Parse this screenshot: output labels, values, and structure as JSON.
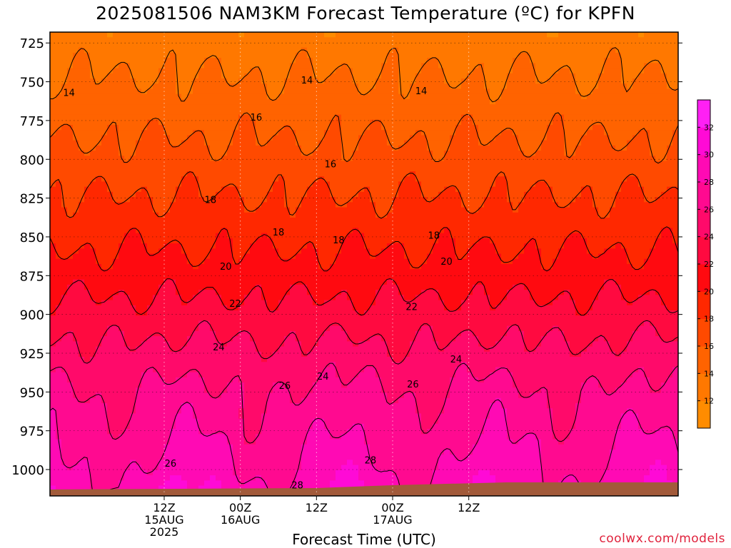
{
  "title": "2025081506 NAM3KM Forecast Temperature (ºC) for KPFN",
  "xlabel": "Forecast Time (UTC)",
  "credit": "coolwx.com/models",
  "chart_data": {
    "type": "heatmap",
    "y_axis": {
      "label": "",
      "ticks": [
        725,
        750,
        775,
        800,
        825,
        850,
        875,
        900,
        925,
        950,
        975,
        1000
      ],
      "range_top": 718,
      "range_bottom": 1017,
      "inverted": true
    },
    "x_axis": {
      "label": "Forecast Time (UTC)",
      "range_hours": [
        -12,
        87
      ],
      "ticks": [
        {
          "hour": 6,
          "lines": [
            "12Z",
            "15AUG",
            "2025"
          ]
        },
        {
          "hour": 18,
          "lines": [
            "00Z",
            "16AUG"
          ]
        },
        {
          "hour": 30,
          "lines": [
            "12Z"
          ]
        },
        {
          "hour": 42,
          "lines": [
            "00Z",
            "17AUG"
          ]
        },
        {
          "hour": 54,
          "lines": [
            "12Z"
          ]
        }
      ]
    },
    "grid": "dotted",
    "colorbar": {
      "labels": [
        12,
        14,
        16,
        18,
        20,
        22,
        24,
        26,
        28,
        30,
        32
      ],
      "levels": [
        10,
        12,
        14,
        16,
        18,
        20,
        22,
        24,
        26,
        28,
        30,
        32,
        34
      ],
      "colors": [
        "#ff8c00",
        "#ff7800",
        "#ff6300",
        "#ff4a00",
        "#ff2800",
        "#ff0a10",
        "#ff0a40",
        "#ff0a6a",
        "#ff0a90",
        "#ff0ab4",
        "#ff0ad6",
        "#ff20f4"
      ]
    },
    "temperature_profile": {
      "pressure": [
        718,
        725,
        750,
        775,
        800,
        825,
        850,
        875,
        900,
        925,
        950,
        975,
        1000,
        1017
      ],
      "temp_c": [
        12.6,
        13.0,
        14.2,
        15.4,
        16.7,
        18.1,
        19.5,
        21.0,
        22.8,
        24.6,
        26.2,
        27.2,
        28.4,
        29.5
      ]
    },
    "contour_labels": [
      {
        "text": "14",
        "hour": -9,
        "p": 757
      },
      {
        "text": "14",
        "hour": 28.5,
        "p": 749
      },
      {
        "text": "14",
        "hour": 46.5,
        "p": 756
      },
      {
        "text": "16",
        "hour": 20.5,
        "p": 773
      },
      {
        "text": "16",
        "hour": 32.2,
        "p": 803
      },
      {
        "text": "18",
        "hour": 13.3,
        "p": 826
      },
      {
        "text": "18",
        "hour": 24.0,
        "p": 847
      },
      {
        "text": "18",
        "hour": 33.5,
        "p": 852
      },
      {
        "text": "18",
        "hour": 48.5,
        "p": 849
      },
      {
        "text": "20",
        "hour": 15.7,
        "p": 869
      },
      {
        "text": "20",
        "hour": 50.5,
        "p": 866
      },
      {
        "text": "22",
        "hour": 17.2,
        "p": 893
      },
      {
        "text": "22",
        "hour": 45.0,
        "p": 895
      },
      {
        "text": "24",
        "hour": 14.6,
        "p": 921
      },
      {
        "text": "24",
        "hour": 31.0,
        "p": 940
      },
      {
        "text": "24",
        "hour": 52.0,
        "p": 929
      },
      {
        "text": "26",
        "hour": 25.0,
        "p": 946
      },
      {
        "text": "26",
        "hour": 45.2,
        "p": 945
      },
      {
        "text": "26",
        "hour": 7.0,
        "p": 996
      },
      {
        "text": "28",
        "hour": 38.5,
        "p": 994
      },
      {
        "text": "28",
        "hour": 27.0,
        "p": 1010
      }
    ]
  }
}
